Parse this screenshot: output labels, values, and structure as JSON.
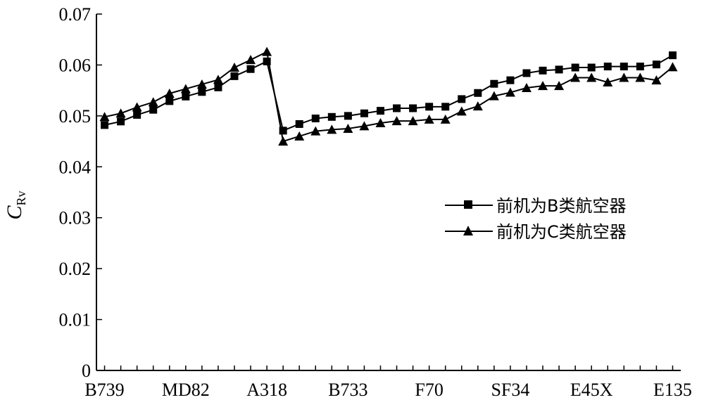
{
  "chart_data": {
    "type": "line",
    "ylabel": {
      "main": "C",
      "sub": "Rv"
    },
    "xlabel": "",
    "ylim": [
      0,
      0.07
    ],
    "yticks": [
      "0",
      "0.01",
      "0.02",
      "0.03",
      "0.04",
      "0.05",
      "0.06",
      "0.07"
    ],
    "xtick_labels": [
      "B739",
      "MD82",
      "A318",
      "B733",
      "F70",
      "SF34",
      "E45X",
      "E135"
    ],
    "xtick_positions": [
      1,
      6,
      11,
      16,
      21,
      26,
      31,
      36
    ],
    "x": [
      1,
      2,
      3,
      4,
      5,
      6,
      7,
      8,
      9,
      10,
      11,
      12,
      13,
      14,
      15,
      16,
      17,
      18,
      19,
      20,
      21,
      22,
      23,
      24,
      25,
      26,
      27,
      28,
      29,
      30,
      31,
      32,
      33,
      34,
      35,
      36
    ],
    "series": [
      {
        "name": "前机为B类航空器",
        "marker": "square",
        "values": [
          0.0482,
          0.0489,
          0.0502,
          0.0512,
          0.0529,
          0.0538,
          0.0547,
          0.0556,
          0.0578,
          0.0592,
          0.0607,
          0.0471,
          0.0484,
          0.0495,
          0.0498,
          0.05,
          0.0505,
          0.051,
          0.0515,
          0.0515,
          0.0518,
          0.0518,
          0.0533,
          0.0545,
          0.0563,
          0.057,
          0.0584,
          0.0589,
          0.0591,
          0.0595,
          0.0595,
          0.0597,
          0.0597,
          0.0597,
          0.0601,
          0.0619
        ]
      },
      {
        "name": "前机为C类航空器",
        "marker": "triangle",
        "values": [
          0.0498,
          0.0505,
          0.0517,
          0.0527,
          0.0544,
          0.0553,
          0.0562,
          0.0571,
          0.0595,
          0.061,
          0.0626,
          0.045,
          0.046,
          0.047,
          0.0473,
          0.0475,
          0.048,
          0.0486,
          0.049,
          0.049,
          0.0493,
          0.0493,
          0.0509,
          0.0519,
          0.0539,
          0.0546,
          0.0555,
          0.0559,
          0.0559,
          0.0575,
          0.0575,
          0.0566,
          0.0575,
          0.0575,
          0.057,
          0.0596
        ]
      }
    ],
    "legend_position": "right",
    "grid": false
  }
}
